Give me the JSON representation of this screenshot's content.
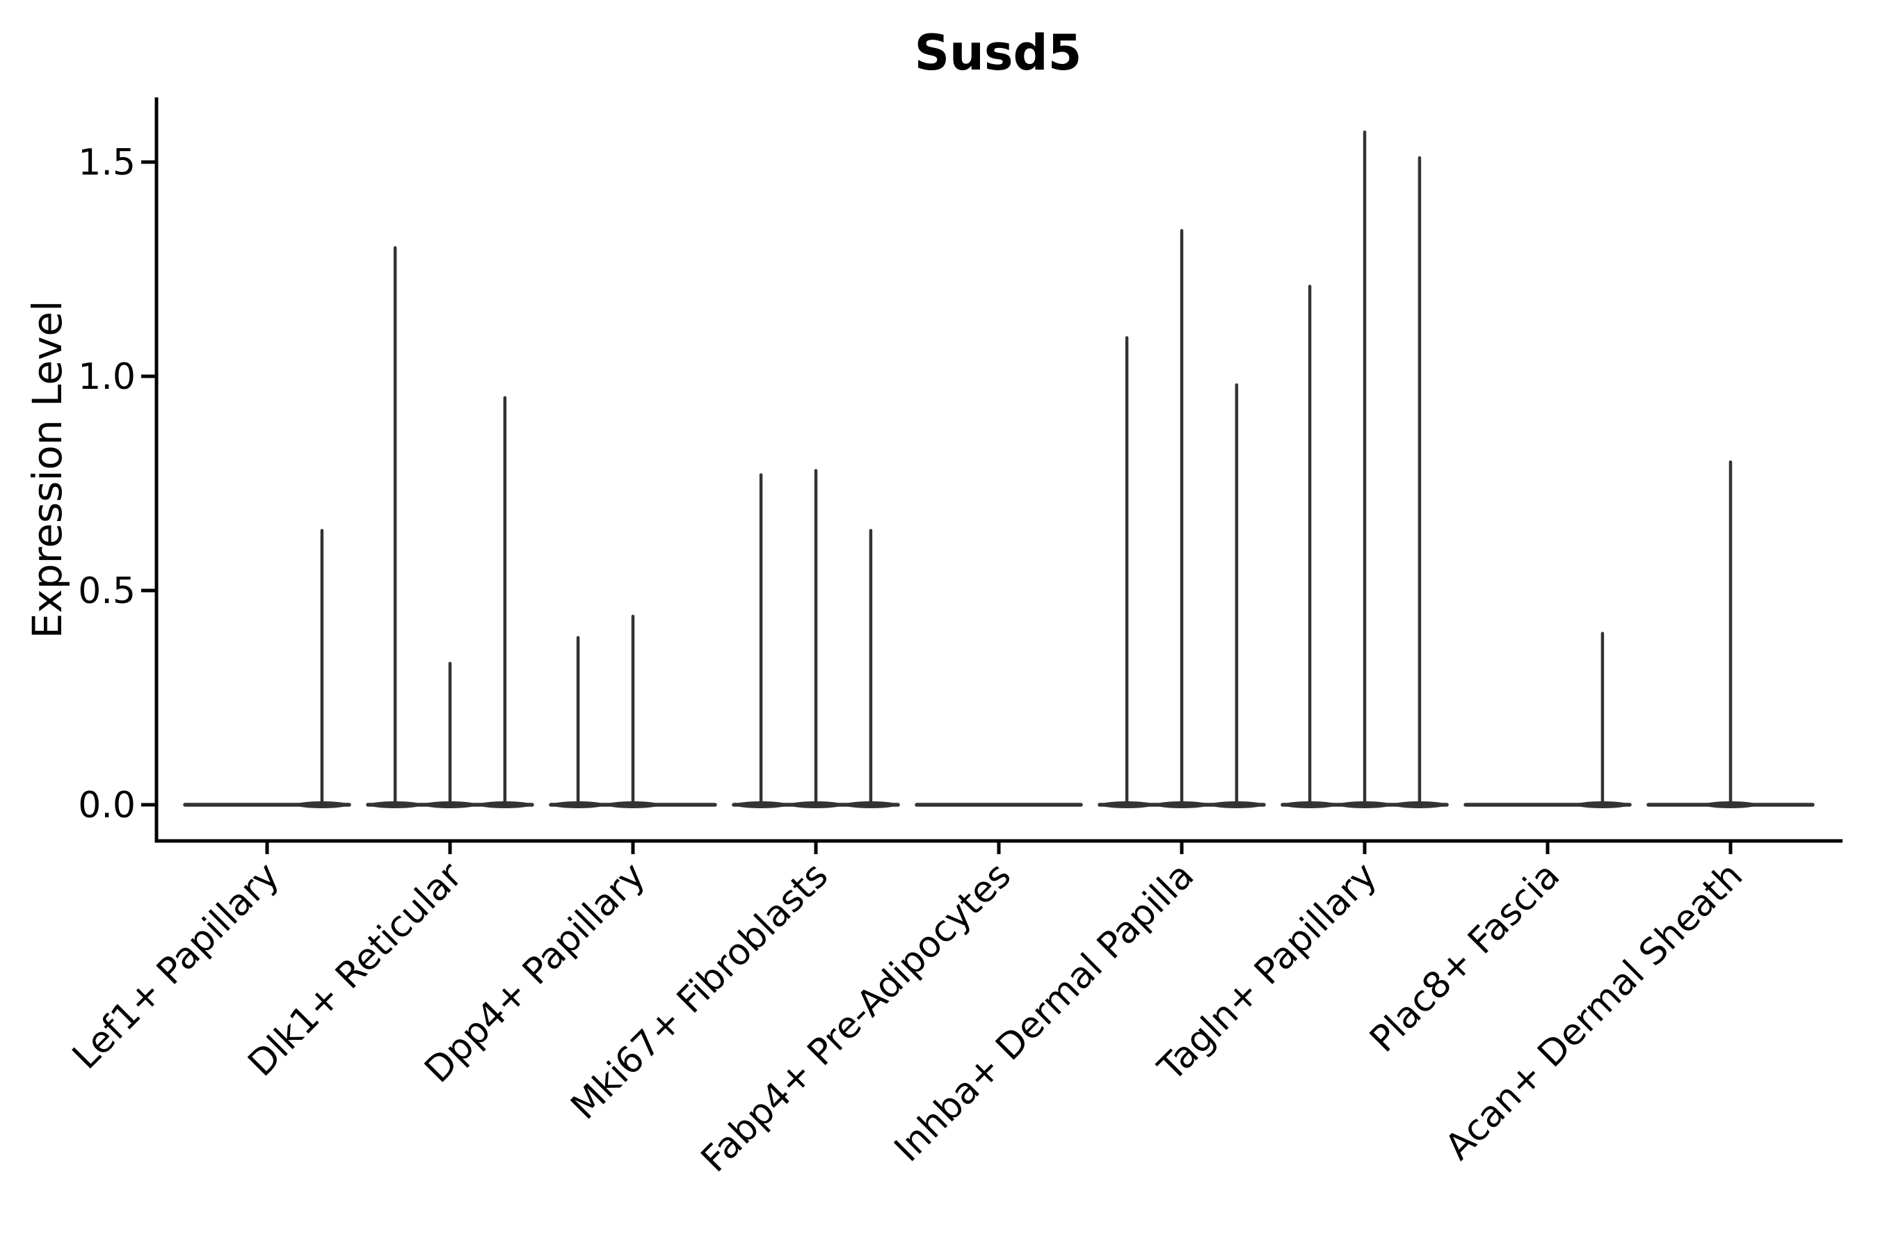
{
  "figure": {
    "title": "Susd5",
    "ylabel": "Expression Level"
  },
  "chart_data": {
    "type": "violin",
    "title": "Susd5",
    "xlabel": "",
    "ylabel": "Expression Level",
    "ylim": [
      -0.09,
      1.65
    ],
    "yticks": [
      0,
      0.5,
      1,
      1.5
    ],
    "ytick_labels": [
      "0.0",
      "0.5",
      "1.0",
      "1.5"
    ],
    "grid": false,
    "legend": "none",
    "violins_per_category": 3,
    "categories": [
      "Lef1+ Papillary",
      "Dlk1+ Reticular",
      "Dpp4+ Papillary",
      "Mki67+ Fibroblasts",
      "Fabp4+ Pre-Adipocytes",
      "Inhba+ Dermal Papilla",
      "Tagln+ Papillary",
      "Plac8+ Fascia",
      "Acan+ Dermal Sheath"
    ],
    "series": [
      {
        "category": "Lef1+ Papillary",
        "values": [
          null,
          null,
          0.64
        ]
      },
      {
        "category": "Dlk1+ Reticular",
        "values": [
          1.3,
          0.33,
          0.95
        ]
      },
      {
        "category": "Dpp4+ Papillary",
        "values": [
          0.39,
          0.44,
          null
        ]
      },
      {
        "category": "Mki67+ Fibroblasts",
        "values": [
          0.77,
          0.78,
          0.64
        ]
      },
      {
        "category": "Fabp4+ Pre-Adipocytes",
        "values": [
          null,
          null,
          null
        ]
      },
      {
        "category": "Inhba+ Dermal Papilla",
        "values": [
          1.09,
          1.34,
          0.98
        ]
      },
      {
        "category": "Tagln+ Papillary",
        "values": [
          1.21,
          1.57,
          1.51
        ]
      },
      {
        "category": "Plac8+ Fascia",
        "values": [
          null,
          null,
          0.4
        ]
      },
      {
        "category": "Acan+ Dermal Sheath",
        "values": [
          null,
          0.8,
          null
        ]
      }
    ],
    "colors": {
      "violin": "#333333",
      "axis": "#000000",
      "background": "#ffffff"
    }
  }
}
